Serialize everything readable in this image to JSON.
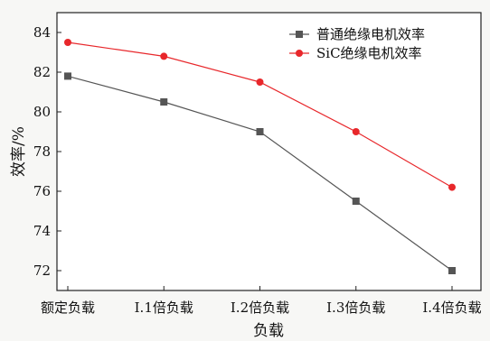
{
  "chart_data": {
    "type": "line",
    "categories": [
      "额定负载",
      "I.1倍负载",
      "I.2倍负载",
      "I.3倍负载",
      "I.4倍负载"
    ],
    "series": [
      {
        "name": "普通绝缘电机效率",
        "values": [
          81.8,
          80.5,
          79.0,
          75.5,
          72.0
        ],
        "color": "#555555",
        "marker": "square"
      },
      {
        "name": "SiC绝缘电机效率",
        "values": [
          83.5,
          82.8,
          81.5,
          79.0,
          76.2
        ],
        "color": "#e8272b",
        "marker": "circle"
      }
    ],
    "xlabel": "负载",
    "ylabel": "效率/%",
    "ylim": [
      71,
      85
    ],
    "yticks": [
      72,
      74,
      76,
      78,
      80,
      82,
      84
    ],
    "grid": false,
    "legend_position": "top-right"
  }
}
